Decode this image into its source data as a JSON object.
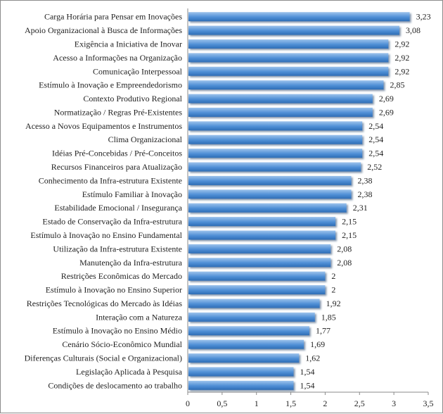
{
  "chart_data": {
    "type": "bar",
    "orientation": "horizontal",
    "categories": [
      "Carga Horária para Pensar em Inovações",
      "Apoio Organizacional à Busca de Informações",
      "Exigência a Iniciativa de Inovar",
      "Acesso a Informações na Organização",
      "Comunicação Interpessoal",
      "Estímulo à Inovação e Empreendedorismo",
      "Contexto Produtivo Regional",
      "Normatização / Regras Pré-Existentes",
      "Acesso a Novos Equipamentos e Instrumentos",
      "Clima Organizacional",
      "Idéias Pré-Concebidas / Pré-Conceitos",
      "Recursos Financeiros para Atualização",
      "Conhecimento da Infra-estrutura Existente",
      "Estímulo Familiar à Inovação",
      "Estabilidade Emocional / Insegurança",
      "Estado de Conservação da Infra-estrutura",
      "Estímulo à Inovação no Ensino Fundamental",
      "Utilização da Infra-estrutura Existente",
      "Manutenção da Infra-estrutura",
      "Restrições Econômicas do Mercado",
      "Estímulo à Inovação no Ensino Superior",
      "Restrições Tecnológicas do Mercado às Idéias",
      "Interação com a Natureza",
      "Estímulo à Inovação no Ensino Médio",
      "Cenário Sócio-Econômico Mundial",
      "Diferenças Culturais (Social e Organizacional)",
      "Legislação Aplicada à Pesquisa",
      "Condições de deslocamento ao trabalho"
    ],
    "values": [
      3.23,
      3.08,
      2.92,
      2.92,
      2.92,
      2.85,
      2.69,
      2.69,
      2.54,
      2.54,
      2.54,
      2.52,
      2.38,
      2.38,
      2.31,
      2.15,
      2.15,
      2.08,
      2.08,
      2,
      2,
      1.92,
      1.85,
      1.77,
      1.69,
      1.62,
      1.54,
      1.54
    ],
    "value_labels": [
      "3,23",
      "3,08",
      "2,92",
      "2,92",
      "2,92",
      "2,85",
      "2,69",
      "2,69",
      "2,54",
      "2,54",
      "2,54",
      "2,52",
      "2,38",
      "2,38",
      "2,31",
      "2,15",
      "2,15",
      "2,08",
      "2,08",
      "2",
      "2",
      "1,92",
      "1,85",
      "1,77",
      "1,69",
      "1,62",
      "1,54",
      "1,54"
    ],
    "x_ticks": [
      0,
      0.5,
      1,
      1.5,
      2,
      2.5,
      3,
      3.5
    ],
    "x_tick_labels": [
      "0",
      "0,5",
      "1",
      "1,5",
      "2",
      "2,5",
      "3",
      "3,5"
    ],
    "xlim": [
      0,
      3.5
    ],
    "title": "",
    "xlabel": "",
    "ylabel": "",
    "grid": false,
    "legend": "none",
    "colors": {
      "bar_top": "#9dc3ec",
      "bar_mid": "#4f8fd6",
      "bar_bottom": "#2e6db5",
      "bar_shadow": "#1f3f66",
      "axis": "#8a8a8a",
      "text": "#1f1f1f"
    }
  }
}
